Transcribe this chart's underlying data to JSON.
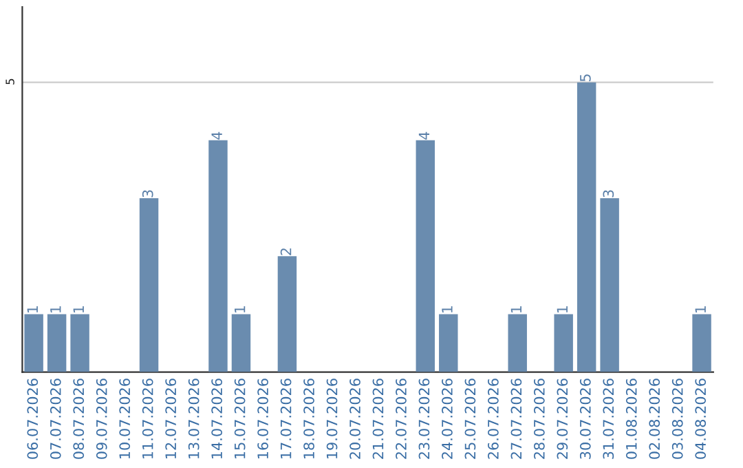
{
  "chart_data": {
    "type": "bar",
    "categories": [
      "06.07.2026",
      "07.07.2026",
      "08.07.2026",
      "09.07.2026",
      "10.07.2026",
      "11.07.2026",
      "12.07.2026",
      "13.07.2026",
      "14.07.2026",
      "15.07.2026",
      "16.07.2026",
      "17.07.2026",
      "18.07.2026",
      "19.07.2026",
      "20.07.2026",
      "21.07.2026",
      "22.07.2026",
      "23.07.2026",
      "24.07.2026",
      "25.07.2026",
      "26.07.2026",
      "27.07.2026",
      "28.07.2026",
      "29.07.2026",
      "30.07.2026",
      "31.07.2026",
      "01.08.2026",
      "02.08.2026",
      "03.08.2026",
      "04.08.2026"
    ],
    "values": [
      1,
      1,
      1,
      0,
      0,
      3,
      0,
      0,
      4,
      1,
      0,
      2,
      0,
      0,
      0,
      0,
      0,
      4,
      1,
      0,
      0,
      1,
      0,
      1,
      5,
      3,
      0,
      0,
      0,
      1
    ],
    "value_labels": [
      "1",
      "1",
      "1",
      null,
      null,
      "3",
      null,
      null,
      "4",
      "1",
      null,
      "2",
      null,
      null,
      null,
      null,
      null,
      "4",
      "1",
      null,
      null,
      "1",
      null,
      "1",
      "5",
      "3",
      null,
      null,
      null,
      "1"
    ],
    "color": "#6a8caf",
    "ylim": [
      0,
      6.3
    ],
    "yticks": [
      5
    ],
    "grid": "y"
  }
}
